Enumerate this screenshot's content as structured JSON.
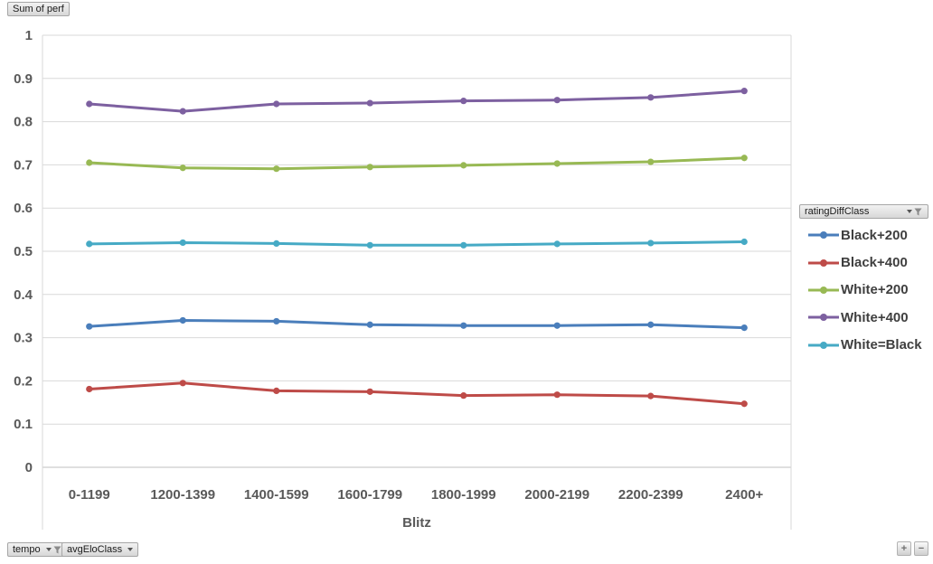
{
  "pivot_chart": {
    "value_field_button": "Sum of perf",
    "legend_field_button": {
      "label": "ratingDiffClass",
      "has_dropdown": true,
      "has_filter": true
    },
    "axis_field_buttons": [
      {
        "label": "tempo",
        "has_dropdown": true,
        "has_filter": true
      },
      {
        "label": "avgEloClass",
        "has_dropdown": true,
        "has_filter": false
      }
    ],
    "expand_button": "+",
    "collapse_button": "−"
  },
  "chart_data": {
    "type": "line",
    "title": "",
    "xlabel": "Blitz",
    "ylabel": "",
    "ylim": [
      0,
      1
    ],
    "yticks": [
      0,
      0.1,
      0.2,
      0.3,
      0.4,
      0.5,
      0.6,
      0.7,
      0.8,
      0.9,
      1
    ],
    "grid": true,
    "legend_title": "ratingDiffClass",
    "legend_position": "right",
    "categories": [
      "0-1199",
      "1200-1399",
      "1400-1599",
      "1600-1799",
      "1800-1999",
      "2000-2199",
      "2200-2399",
      "2400+"
    ],
    "series": [
      {
        "name": "Black+200",
        "color": "#4a7ebb",
        "values": [
          0.326,
          0.34,
          0.338,
          0.33,
          0.328,
          0.328,
          0.33,
          0.323
        ]
      },
      {
        "name": "Black+400",
        "color": "#be4b48",
        "values": [
          0.181,
          0.195,
          0.177,
          0.175,
          0.166,
          0.168,
          0.165,
          0.147
        ]
      },
      {
        "name": "White+200",
        "color": "#98b954",
        "values": [
          0.705,
          0.693,
          0.691,
          0.695,
          0.699,
          0.703,
          0.707,
          0.716
        ]
      },
      {
        "name": "White+400",
        "color": "#7d60a0",
        "values": [
          0.841,
          0.824,
          0.841,
          0.843,
          0.848,
          0.85,
          0.856,
          0.871
        ]
      },
      {
        "name": "White=Black",
        "color": "#46aac5",
        "values": [
          0.517,
          0.52,
          0.518,
          0.514,
          0.514,
          0.517,
          0.519,
          0.522
        ]
      }
    ]
  },
  "colors": {
    "tick_text": "#595959",
    "legend_text": "#3f3f3f",
    "gridline": "#d9d9d9",
    "axis_line": "#bfbfbf"
  }
}
